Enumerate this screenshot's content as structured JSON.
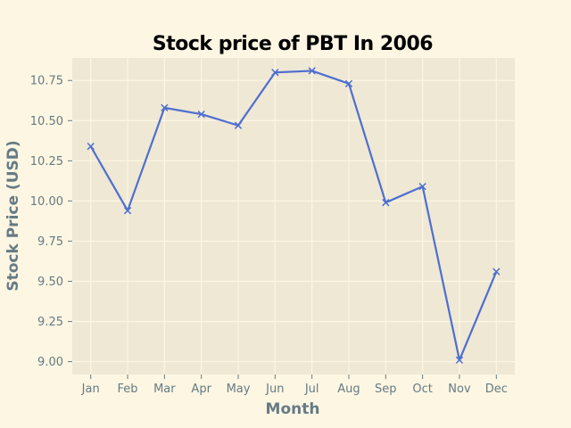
{
  "colors": {
    "figure_bg": "#fdf6e3",
    "plot_bg": "#eee8d5",
    "grid": "#fdf6e3",
    "line": "#4f6fcf",
    "text": "#657b83",
    "title": "#000000"
  },
  "chart_data": {
    "type": "line",
    "title": "Stock price of PBT In 2006",
    "xlabel": "Month",
    "ylabel": "Stock Price (USD)",
    "categories": [
      "Jan",
      "Feb",
      "Mar",
      "Apr",
      "May",
      "Jun",
      "Jul",
      "Aug",
      "Sep",
      "Oct",
      "Nov",
      "Dec"
    ],
    "series": [
      {
        "values": [
          10.34,
          9.94,
          10.58,
          10.54,
          10.47,
          10.8,
          10.81,
          10.73,
          9.99,
          10.09,
          9.01,
          9.56
        ],
        "marker": "x"
      }
    ],
    "ylim": [
      8.92,
      10.89
    ],
    "yticks": [
      9.0,
      9.25,
      9.5,
      9.75,
      10.0,
      10.25,
      10.5,
      10.75
    ],
    "ytick_labels": [
      "9.00",
      "9.25",
      "9.50",
      "9.75",
      "10.00",
      "10.25",
      "10.50",
      "10.75"
    ],
    "grid": true,
    "legend": "none"
  }
}
